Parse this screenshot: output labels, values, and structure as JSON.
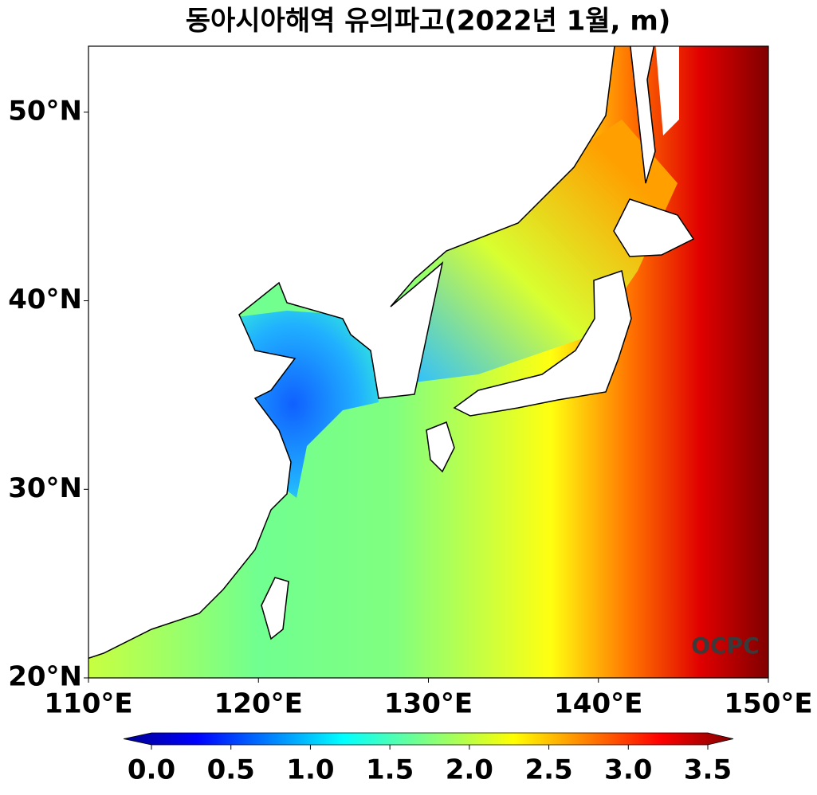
{
  "title": "동아시아해역 유의파고(2022년 1월, m)",
  "map": {
    "xlim": [
      110,
      150
    ],
    "ylim": [
      20,
      53.5
    ],
    "xticks": [
      {
        "value": 110,
        "label": "110°E"
      },
      {
        "value": 120,
        "label": "120°E"
      },
      {
        "value": 130,
        "label": "130°E"
      },
      {
        "value": 140,
        "label": "140°E"
      },
      {
        "value": 150,
        "label": "150°E"
      }
    ],
    "yticks": [
      {
        "value": 20,
        "label": "20°N"
      },
      {
        "value": 30,
        "label": "30°N"
      },
      {
        "value": 40,
        "label": "40°N"
      },
      {
        "value": 50,
        "label": "50°N"
      }
    ]
  },
  "colorbar": {
    "lim": [
      0,
      3.5
    ],
    "ticks": [
      {
        "value": 0,
        "label": "0.0"
      },
      {
        "value": 0.5,
        "label": "0.5"
      },
      {
        "value": 1,
        "label": "1.0"
      },
      {
        "value": 1.5,
        "label": "1.5"
      },
      {
        "value": 2,
        "label": "2.0"
      },
      {
        "value": 2.5,
        "label": "2.5"
      },
      {
        "value": 3,
        "label": "3.0"
      },
      {
        "value": 3.5,
        "label": "3.5"
      }
    ]
  },
  "logo": "OCPC"
}
